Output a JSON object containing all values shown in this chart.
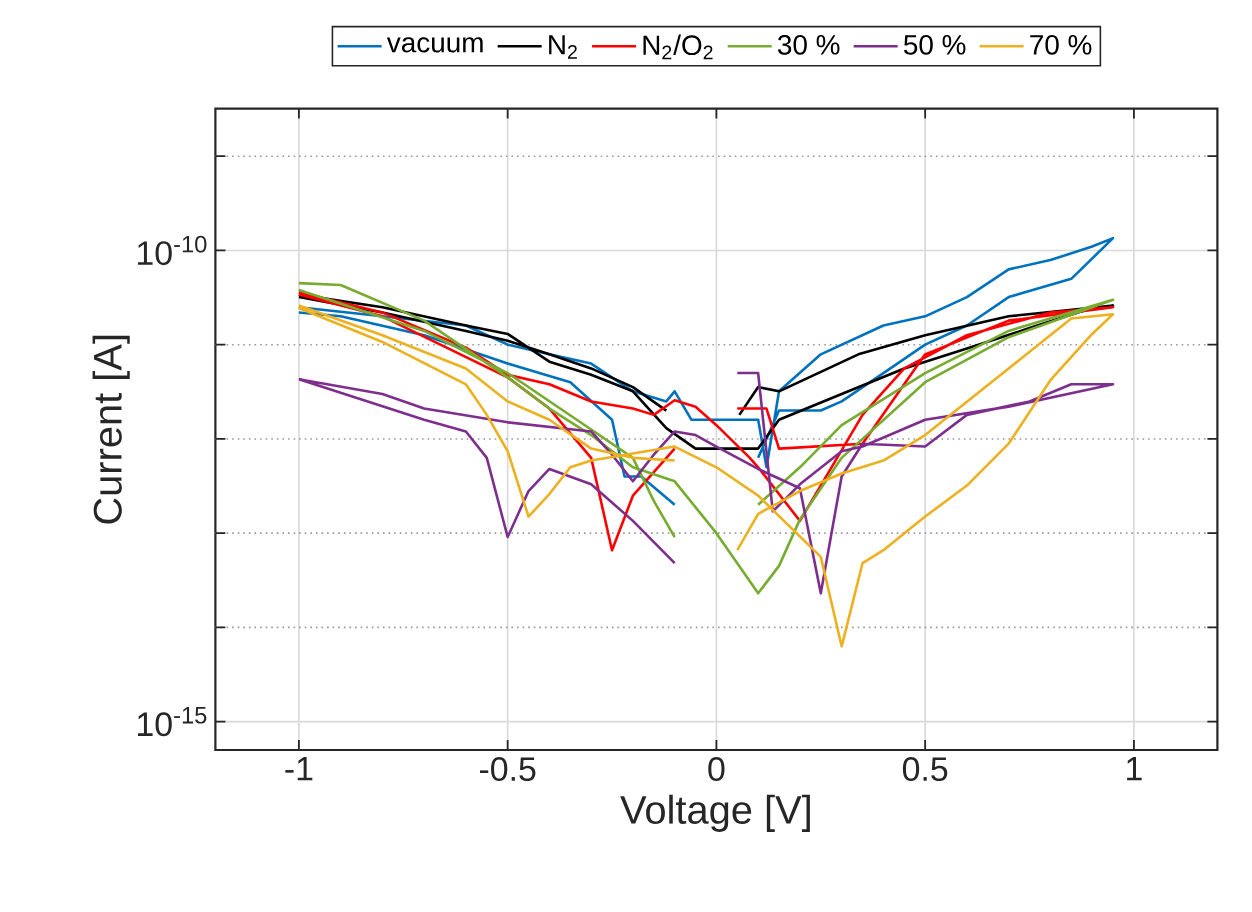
{
  "chart_data": {
    "type": "line",
    "xlabel": "Voltage [V]",
    "ylabel": "Current [A]",
    "xlim": [
      -1.2,
      1.2
    ],
    "xticks": [
      -1,
      -0.5,
      0,
      0.5,
      1
    ],
    "ylim": [
      5e-16,
      3.2e-09
    ],
    "yticks": [
      {
        "value": 1e-15,
        "label": "10$^{-15}$"
      },
      {
        "value": 1e-14,
        "label": null
      },
      {
        "value": 1e-13,
        "label": null
      },
      {
        "value": 1e-12,
        "label": null
      },
      {
        "value": 1e-11,
        "label": null
      },
      {
        "value": 1e-10,
        "label": "10$^{-10}$"
      },
      {
        "value": 1e-09,
        "label": null
      }
    ],
    "log": "y",
    "grid": true,
    "legend": "top",
    "line_style": "solid",
    "series": [
      {
        "name": "vacuum",
        "color": "#0072bd",
        "x": [
          -1,
          -0.8,
          -0.6,
          -0.5,
          -0.4,
          -0.3,
          -0.2,
          -0.12,
          -0.1,
          -0.06,
          0.1,
          0.12,
          0.15,
          0.25,
          0.4,
          0.5,
          0.6,
          0.7,
          0.8,
          0.9,
          0.95,
          0.85,
          0.7,
          0.6,
          0.5,
          0.4,
          0.3,
          0.25,
          0.15,
          0.1,
          null,
          -0.1,
          -0.18,
          -0.22,
          -0.25,
          -0.35,
          -0.5,
          -0.7,
          -0.9,
          -1
        ],
        "values": [
          2.5e-11,
          2e-11,
          1.6e-11,
          1e-11,
          7.9e-12,
          6.3e-12,
          3.2e-12,
          2.5e-12,
          3.2e-12,
          1.6e-12,
          1.6e-12,
          5e-13,
          3.2e-12,
          7.9e-12,
          1.6e-11,
          2e-11,
          3.2e-11,
          6.3e-11,
          7.9e-11,
          1.1e-10,
          1.35e-10,
          5e-11,
          3.2e-11,
          1.6e-11,
          1e-11,
          5e-12,
          2.5e-12,
          2e-12,
          2e-12,
          6.3e-13,
          null,
          2e-13,
          4e-13,
          4e-13,
          1.6e-12,
          4e-12,
          6.3e-12,
          1.26e-11,
          2e-11,
          2.2e-11
        ]
      },
      {
        "name": "N$_{2}$",
        "color": "#000000",
        "x": [
          -1,
          -0.8,
          -0.6,
          -0.5,
          -0.4,
          -0.3,
          -0.2,
          -0.12,
          -0.05,
          0.1,
          0.15,
          0.3,
          0.45,
          0.6,
          0.75,
          0.9,
          0.95,
          0.7,
          0.5,
          0.34,
          0.15,
          0.1,
          0.055,
          null,
          -0.12,
          -0.2,
          -0.3,
          -0.4,
          -0.5,
          -0.6,
          -0.8,
          -1
        ],
        "values": [
          3.4e-11,
          2.5e-11,
          1.6e-11,
          1.3e-11,
          6.6e-12,
          4.8e-12,
          3.2e-12,
          1.3e-12,
          7.9e-13,
          7.9e-13,
          1.6e-12,
          3e-12,
          5.6e-12,
          9.1e-12,
          1.5e-11,
          2.45e-11,
          2.6e-11,
          2e-11,
          1.26e-11,
          7.9e-12,
          3.2e-12,
          3.55e-12,
          1.8e-12,
          null,
          2e-12,
          3.55e-12,
          5.6e-12,
          7.9e-12,
          1.1e-11,
          1.4e-11,
          2.2e-11,
          3.2e-11
        ]
      },
      {
        "name": "N$_{2}$/O$_{2}$",
        "color": "#ff0000",
        "x": [
          -1,
          -0.8,
          -0.6,
          -0.5,
          -0.4,
          -0.3,
          -0.2,
          -0.15,
          -0.1,
          -0.05,
          0,
          0.08,
          0.1,
          0.2,
          0.35,
          0.45,
          0.6,
          0.8,
          0.95,
          0.7,
          0.5,
          0.35,
          0.15,
          0.12,
          0.05,
          null,
          -0.1,
          -0.2,
          -0.25,
          -0.3,
          -0.4,
          -0.5,
          -0.8,
          -1
        ],
        "values": [
          3.6e-11,
          2.2e-11,
          9.3e-12,
          4.8e-12,
          3.8e-12,
          2.5e-12,
          2.1e-12,
          1.8e-12,
          2.57e-12,
          2.2e-12,
          1.4e-12,
          6.3e-13,
          5e-13,
          1.35e-13,
          1.8e-12,
          5.6e-12,
          1.26e-11,
          2.2e-11,
          2.5e-11,
          1.8e-11,
          7.9e-12,
          8.9e-13,
          7.9e-13,
          2.1e-12,
          2.1e-12,
          null,
          7.9e-13,
          2.5e-13,
          6.6e-14,
          6.3e-13,
          2.1e-12,
          4.5e-12,
          2e-11,
          3.4e-11
        ]
      },
      {
        "name": "30 %",
        "color": "#77ac30",
        "x": [
          -1,
          -0.9,
          -0.7,
          -0.5,
          -0.4,
          -0.3,
          -0.2,
          -0.1,
          0,
          0.1,
          0.15,
          0.2,
          0.3,
          0.5,
          0.7,
          0.95,
          0.7,
          0.5,
          0.3,
          0.2,
          0.1,
          null,
          -0.1,
          -0.15,
          -0.2,
          -0.3,
          -0.5,
          -0.7,
          -1
        ],
        "values": [
          4.5e-11,
          4.3e-11,
          1.8e-11,
          4.5e-12,
          2.1e-12,
          1.1e-12,
          5e-13,
          3.55e-13,
          1e-13,
          2.3e-14,
          4.5e-14,
          1.4e-13,
          6.3e-13,
          4e-12,
          1.2e-11,
          3e-11,
          1.4e-11,
          5e-12,
          1.4e-12,
          5e-13,
          2e-13,
          null,
          9.1e-14,
          2.2e-13,
          6.3e-13,
          1.26e-12,
          5e-12,
          1.4e-11,
          3.8e-11
        ]
      },
      {
        "name": "50 %",
        "color": "#7e2f8e",
        "x": [
          -1,
          -0.8,
          -0.7,
          -0.5,
          -0.3,
          -0.25,
          -0.2,
          -0.15,
          -0.1,
          -0.05,
          0,
          0.1,
          0.2,
          0.25,
          0.3,
          0.35,
          0.5,
          0.6,
          0.75,
          0.85,
          0.95,
          0.7,
          0.5,
          0.35,
          0.3,
          0.2,
          0.135,
          0.1,
          0.05,
          null,
          -0.1,
          -0.2,
          -0.3,
          -0.4,
          -0.45,
          -0.5,
          -0.55,
          -0.6,
          -0.7,
          -1
        ],
        "values": [
          4.3e-12,
          3e-12,
          2.1e-12,
          1.5e-12,
          1.2e-12,
          6.8e-13,
          3.55e-13,
          6.8e-13,
          1.2e-12,
          1.1e-12,
          8.3e-13,
          4.8e-13,
          3e-13,
          2.3e-14,
          4e-13,
          8.9e-13,
          8.3e-13,
          1.8e-12,
          2.5e-12,
          3.8e-12,
          3.8e-12,
          2.2e-12,
          1.6e-12,
          8.3e-13,
          7.4e-13,
          3.3e-13,
          1.7e-13,
          5e-12,
          5e-12,
          null,
          4.8e-14,
          1.35e-13,
          3.3e-13,
          4.8e-13,
          2.8e-13,
          9.1e-14,
          6.3e-13,
          1.2e-12,
          1.6e-12,
          4.3e-12
        ]
      },
      {
        "name": "70 %",
        "color": "#edb120",
        "x": [
          -1,
          -0.8,
          -0.6,
          -0.55,
          -0.5,
          -0.45,
          -0.4,
          -0.35,
          -0.3,
          -0.1,
          0,
          0.1,
          0.25,
          0.3,
          0.35,
          0.4,
          0.5,
          0.6,
          0.7,
          0.8,
          0.9,
          0.95,
          0.85,
          0.7,
          0.5,
          0.4,
          0.3,
          0.2,
          0.1,
          0.05,
          null,
          -0.1,
          -0.2,
          -0.3,
          -0.4,
          -0.5,
          -0.6,
          -0.8,
          -1
        ],
        "values": [
          2.45e-11,
          1.07e-11,
          3.8e-12,
          1.8e-12,
          7.4e-13,
          1.5e-13,
          2.6e-13,
          5e-13,
          5.9e-13,
          8.3e-13,
          5e-13,
          2.5e-13,
          5.6e-14,
          6.3e-15,
          4.8e-14,
          6.6e-14,
          1.5e-13,
          3.2e-13,
          8.9e-13,
          4.2e-12,
          1.3e-11,
          2.1e-11,
          1.9e-11,
          5.6e-12,
          1.1e-12,
          5.9e-13,
          4.3e-13,
          2.8e-13,
          1.6e-13,
          6.6e-14,
          null,
          5.9e-13,
          6.3e-13,
          7.9e-13,
          1.6e-12,
          2.5e-12,
          5.6e-12,
          1.26e-11,
          2.6e-11
        ]
      }
    ]
  }
}
